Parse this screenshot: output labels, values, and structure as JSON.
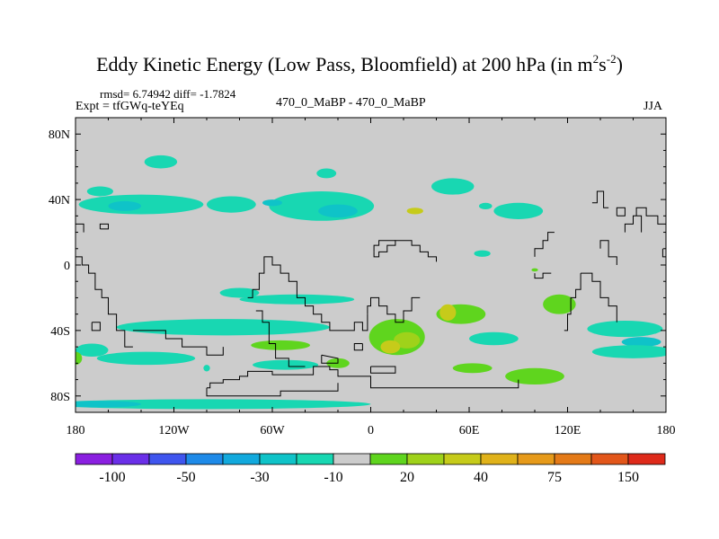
{
  "chart_data": {
    "type": "contour_map",
    "title": {
      "main": "Eddy Kinetic Energy (Low Pass, Bloomfield) at 200 hPa (in m",
      "sup1": "2",
      "mid": "s",
      "sup2": "-2",
      "end": ")"
    },
    "stats": "rmsd= 6.74942 diff= -1.7824",
    "expt": "Expt = tfGWq-teYEq",
    "center_label": "470_0_MaBP - 470_0_MaBP",
    "season": "JJA",
    "x_ticks": [
      "180",
      "120W",
      "60W",
      "0",
      "60E",
      "120E",
      "180"
    ],
    "y_ticks": [
      "80N",
      "40N",
      "0",
      "40S",
      "80S"
    ],
    "lon_range": [
      -180,
      180
    ],
    "lat_range": [
      -90,
      90
    ],
    "colorbar_labels": [
      "-100",
      "-50",
      "-30",
      "-10",
      "20",
      "40",
      "75",
      "150"
    ],
    "colorbar_colors": [
      "#8a1fe0",
      "#6a2fe8",
      "#3f55ee",
      "#1e8ae8",
      "#12a9dd",
      "#0fc3c8",
      "#18d7b2",
      "#cccccc",
      "#5fd51e",
      "#9fd21a",
      "#c6cb1a",
      "#e0b21a",
      "#e69a1a",
      "#e47a18",
      "#e2561a",
      "#de2a1a"
    ],
    "fill_regions": [
      {
        "lon": -128,
        "lat": 63,
        "rlon": 10,
        "rlat": 4,
        "cls": 6
      },
      {
        "lon": -165,
        "lat": 45,
        "rlon": 8,
        "rlat": 3,
        "cls": 6
      },
      {
        "lon": -140,
        "lat": 37,
        "rlon": 38,
        "rlat": 6,
        "cls": 6
      },
      {
        "lon": -150,
        "lat": 36,
        "rlon": 10,
        "rlat": 3,
        "cls": 5
      },
      {
        "lon": -85,
        "lat": 37,
        "rlon": 15,
        "rlat": 5,
        "cls": 6
      },
      {
        "lon": -30,
        "lat": 36,
        "rlon": 32,
        "rlat": 9,
        "cls": 6
      },
      {
        "lon": -20,
        "lat": 33,
        "rlon": 12,
        "rlat": 4,
        "cls": 5
      },
      {
        "lon": -60,
        "lat": 38,
        "rlon": 6,
        "rlat": 2,
        "cls": 5
      },
      {
        "lon": -27,
        "lat": 56,
        "rlon": 6,
        "rlat": 3,
        "cls": 6
      },
      {
        "lon": 50,
        "lat": 48,
        "rlon": 13,
        "rlat": 5,
        "cls": 6
      },
      {
        "lon": 25,
        "lat": 32,
        "rlon": 15,
        "rlat": 5,
        "cls": 7
      },
      {
        "lon": 27,
        "lat": 33,
        "rlon": 5,
        "rlat": 2,
        "cls": 10
      },
      {
        "lon": 70,
        "lat": 36,
        "rlon": 4,
        "rlat": 2,
        "cls": 6
      },
      {
        "lon": 90,
        "lat": 33,
        "rlon": 15,
        "rlat": 5,
        "cls": 6
      },
      {
        "lon": 68,
        "lat": 7,
        "rlon": 5,
        "rlat": 2,
        "cls": 6
      },
      {
        "lon": 100,
        "lat": -3,
        "rlon": 2,
        "rlat": 1,
        "cls": 8
      },
      {
        "lon": -80,
        "lat": -17,
        "rlon": 12,
        "rlat": 3,
        "cls": 6
      },
      {
        "lon": -45,
        "lat": -21,
        "rlon": 35,
        "rlat": 3,
        "cls": 6
      },
      {
        "lon": 55,
        "lat": -30,
        "rlon": 15,
        "rlat": 6,
        "cls": 8
      },
      {
        "lon": 47,
        "lat": -29,
        "rlon": 5,
        "rlat": 5,
        "cls": 10
      },
      {
        "lon": 115,
        "lat": -24,
        "rlon": 10,
        "rlat": 6,
        "cls": 8
      },
      {
        "lon": -90,
        "lat": -38,
        "rlon": 65,
        "rlat": 5,
        "cls": 6
      },
      {
        "lon": 16,
        "lat": -44,
        "rlon": 17,
        "rlat": 11,
        "cls": 8
      },
      {
        "lon": 22,
        "lat": -46,
        "rlon": 8,
        "rlat": 5,
        "cls": 9
      },
      {
        "lon": 12,
        "lat": -50,
        "rlon": 6,
        "rlat": 4,
        "cls": 10
      },
      {
        "lon": 75,
        "lat": -45,
        "rlon": 15,
        "rlat": 4,
        "cls": 6
      },
      {
        "lon": 155,
        "lat": -39,
        "rlon": 23,
        "rlat": 5,
        "cls": 6
      },
      {
        "lon": 165,
        "lat": -47,
        "rlon": 12,
        "rlat": 3,
        "cls": 5
      },
      {
        "lon": 160,
        "lat": -53,
        "rlon": 25,
        "rlat": 4,
        "cls": 6
      },
      {
        "lon": -170,
        "lat": -52,
        "rlon": 10,
        "rlat": 4,
        "cls": 6
      },
      {
        "lon": -180,
        "lat": -57,
        "rlon": 4,
        "rlat": 4,
        "cls": 8
      },
      {
        "lon": -137,
        "lat": -57,
        "rlon": 30,
        "rlat": 4,
        "cls": 6
      },
      {
        "lon": -52,
        "lat": -61,
        "rlon": 20,
        "rlat": 3,
        "cls": 6
      },
      {
        "lon": -55,
        "lat": -49,
        "rlon": 18,
        "rlat": 3,
        "cls": 8
      },
      {
        "lon": -20,
        "lat": -60,
        "rlon": 7,
        "rlat": 3,
        "cls": 8
      },
      {
        "lon": 62,
        "lat": -63,
        "rlon": 12,
        "rlat": 3,
        "cls": 8
      },
      {
        "lon": 100,
        "lat": -68,
        "rlon": 18,
        "rlat": 5,
        "cls": 8
      },
      {
        "lon": -100,
        "lat": -63,
        "rlon": 2,
        "rlat": 2,
        "cls": 6
      },
      {
        "lon": -100,
        "lat": -85,
        "rlon": 100,
        "rlat": 3,
        "cls": 6
      },
      {
        "lon": -165,
        "lat": -85,
        "rlon": 25,
        "rlat": 2,
        "cls": 5
      }
    ],
    "coastlines": [
      [
        [
          -180,
          5
        ],
        [
          -176,
          5
        ],
        [
          -176,
          0
        ],
        [
          -172,
          0
        ],
        [
          -172,
          -5
        ],
        [
          -168,
          -5
        ],
        [
          -168,
          -15
        ],
        [
          -164,
          -15
        ],
        [
          -164,
          -20
        ],
        [
          -160,
          -20
        ],
        [
          -160,
          -30
        ],
        [
          -155,
          -30
        ],
        [
          -155,
          -40
        ],
        [
          -150,
          -40
        ],
        [
          -150,
          -50
        ],
        [
          -145,
          -50
        ]
      ],
      [
        [
          -145,
          -40
        ],
        [
          -125,
          -40
        ],
        [
          -125,
          -45
        ],
        [
          -115,
          -45
        ],
        [
          -115,
          -50
        ],
        [
          -100,
          -50
        ],
        [
          -100,
          -55
        ],
        [
          -90,
          -55
        ],
        [
          -90,
          -50
        ]
      ],
      [
        [
          -70,
          -28
        ],
        [
          -66,
          -28
        ],
        [
          -66,
          -35
        ],
        [
          -62,
          -35
        ],
        [
          -62,
          -48
        ],
        [
          -58,
          -48
        ],
        [
          -58,
          -57
        ],
        [
          -50,
          -57
        ],
        [
          -50,
          -62
        ],
        [
          -40,
          -62
        ]
      ],
      [
        [
          -100,
          -75
        ],
        [
          -98,
          -75
        ],
        [
          -98,
          -72
        ],
        [
          -90,
          -72
        ],
        [
          -90,
          -70
        ],
        [
          -80,
          -70
        ],
        [
          -80,
          -68
        ],
        [
          -75,
          -68
        ],
        [
          -75,
          -65
        ],
        [
          -60,
          -65
        ],
        [
          -60,
          -67
        ],
        [
          -35,
          -67
        ],
        [
          -35,
          -62
        ],
        [
          -25,
          -62
        ],
        [
          -25,
          -64
        ],
        [
          -20,
          -64
        ],
        [
          -20,
          -68
        ],
        [
          0,
          -68
        ],
        [
          0,
          -75
        ],
        [
          90,
          -75
        ],
        [
          90,
          -70
        ]
      ],
      [
        [
          -100,
          -75
        ],
        [
          -100,
          -80
        ],
        [
          -55,
          -80
        ],
        [
          -55,
          -77
        ],
        [
          -20,
          -77
        ],
        [
          -20,
          -72
        ]
      ],
      [
        [
          -65,
          0
        ],
        [
          -65,
          5
        ],
        [
          -60,
          5
        ],
        [
          -60,
          0
        ],
        [
          -55,
          0
        ],
        [
          -55,
          -5
        ],
        [
          -50,
          -5
        ],
        [
          -50,
          -10
        ],
        [
          -45,
          -10
        ],
        [
          -45,
          -20
        ],
        [
          -40,
          -20
        ],
        [
          -40,
          -25
        ],
        [
          -35,
          -25
        ],
        [
          -35,
          -30
        ],
        [
          -30,
          -30
        ],
        [
          -30,
          -35
        ],
        [
          -25,
          -35
        ],
        [
          -25,
          -40
        ],
        [
          -10,
          -40
        ],
        [
          -10,
          -35
        ],
        [
          -5,
          -35
        ],
        [
          -5,
          -40
        ],
        [
          -2,
          -40
        ],
        [
          -2,
          -30
        ]
      ],
      [
        [
          -65,
          0
        ],
        [
          -65,
          -5
        ],
        [
          -68,
          -5
        ],
        [
          -68,
          -15
        ],
        [
          -72,
          -15
        ],
        [
          -72,
          -20
        ],
        [
          -75,
          -20
        ]
      ],
      [
        [
          -2,
          -30
        ],
        [
          -2,
          -25
        ],
        [
          0,
          -25
        ],
        [
          0,
          -20
        ],
        [
          5,
          -20
        ],
        [
          5,
          -25
        ],
        [
          10,
          -25
        ],
        [
          10,
          -30
        ],
        [
          15,
          -30
        ],
        [
          15,
          -35
        ],
        [
          20,
          -35
        ],
        [
          20,
          -28
        ],
        [
          25,
          -28
        ],
        [
          25,
          -20
        ],
        [
          30,
          -20
        ]
      ],
      [
        [
          -5,
          -48
        ],
        [
          -5,
          -52
        ],
        [
          -10,
          -52
        ],
        [
          -10,
          -48
        ],
        [
          -5,
          -48
        ]
      ],
      [
        [
          -30,
          -55
        ],
        [
          -30,
          -60
        ],
        [
          -20,
          -60
        ],
        [
          -20,
          -57
        ],
        [
          -30,
          -55
        ]
      ],
      [
        [
          0,
          -62
        ],
        [
          0,
          -66
        ],
        [
          15,
          -66
        ],
        [
          15,
          -62
        ],
        [
          0,
          -62
        ]
      ],
      [
        [
          2,
          8
        ],
        [
          2,
          5
        ],
        [
          5,
          5
        ],
        [
          5,
          8
        ],
        [
          10,
          8
        ],
        [
          10,
          12
        ],
        [
          15,
          12
        ],
        [
          15,
          15
        ],
        [
          25,
          15
        ],
        [
          25,
          12
        ],
        [
          30,
          12
        ],
        [
          30,
          8
        ],
        [
          35,
          8
        ],
        [
          35,
          5
        ],
        [
          40,
          5
        ],
        [
          40,
          2
        ]
      ],
      [
        [
          2,
          8
        ],
        [
          2,
          12
        ],
        [
          5,
          12
        ],
        [
          5,
          15
        ],
        [
          15,
          15
        ]
      ],
      [
        [
          100,
          5
        ],
        [
          100,
          10
        ],
        [
          105,
          10
        ],
        [
          105,
          15
        ],
        [
          108,
          15
        ],
        [
          108,
          20
        ],
        [
          112,
          20
        ]
      ],
      [
        [
          100,
          -5
        ],
        [
          100,
          -8
        ],
        [
          105,
          -8
        ],
        [
          105,
          -5
        ],
        [
          110,
          -5
        ]
      ],
      [
        [
          128,
          -5
        ],
        [
          128,
          -15
        ],
        [
          125,
          -15
        ],
        [
          125,
          -20
        ],
        [
          122,
          -20
        ],
        [
          122,
          -30
        ],
        [
          120,
          -30
        ],
        [
          120,
          -40
        ],
        [
          118,
          -40
        ]
      ],
      [
        [
          128,
          -5
        ],
        [
          135,
          -5
        ],
        [
          135,
          -10
        ],
        [
          140,
          -10
        ],
        [
          140,
          -20
        ],
        [
          145,
          -20
        ],
        [
          145,
          -25
        ],
        [
          150,
          -25
        ],
        [
          150,
          -35
        ]
      ],
      [
        [
          140,
          10
        ],
        [
          140,
          15
        ],
        [
          145,
          15
        ],
        [
          145,
          5
        ],
        [
          150,
          5
        ],
        [
          150,
          0
        ]
      ],
      [
        [
          155,
          20
        ],
        [
          155,
          25
        ],
        [
          160,
          25
        ],
        [
          160,
          30
        ],
        [
          165,
          30
        ],
        [
          165,
          20
        ]
      ],
      [
        [
          135,
          38
        ],
        [
          138,
          38
        ],
        [
          138,
          45
        ],
        [
          142,
          45
        ],
        [
          142,
          35
        ],
        [
          145,
          35
        ]
      ],
      [
        [
          150,
          30
        ],
        [
          150,
          35
        ],
        [
          155,
          35
        ],
        [
          155,
          30
        ],
        [
          150,
          30
        ]
      ],
      [
        [
          162,
          30
        ],
        [
          162,
          35
        ],
        [
          168,
          35
        ],
        [
          168,
          30
        ],
        [
          175,
          30
        ],
        [
          175,
          25
        ],
        [
          180,
          25
        ]
      ],
      [
        [
          -180,
          25
        ],
        [
          -175,
          25
        ],
        [
          -175,
          20
        ]
      ],
      [
        [
          -165,
          22
        ],
        [
          -160,
          22
        ],
        [
          -160,
          25
        ],
        [
          -165,
          25
        ],
        [
          -165,
          22
        ]
      ],
      [
        [
          -170,
          -35
        ],
        [
          -165,
          -35
        ],
        [
          -165,
          -40
        ],
        [
          -170,
          -40
        ],
        [
          -170,
          -35
        ]
      ],
      [
        [
          -180,
          -90
        ],
        [
          -180,
          -88
        ]
      ],
      [
        [
          178,
          10
        ],
        [
          178,
          5
        ],
        [
          180,
          5
        ]
      ]
    ]
  }
}
